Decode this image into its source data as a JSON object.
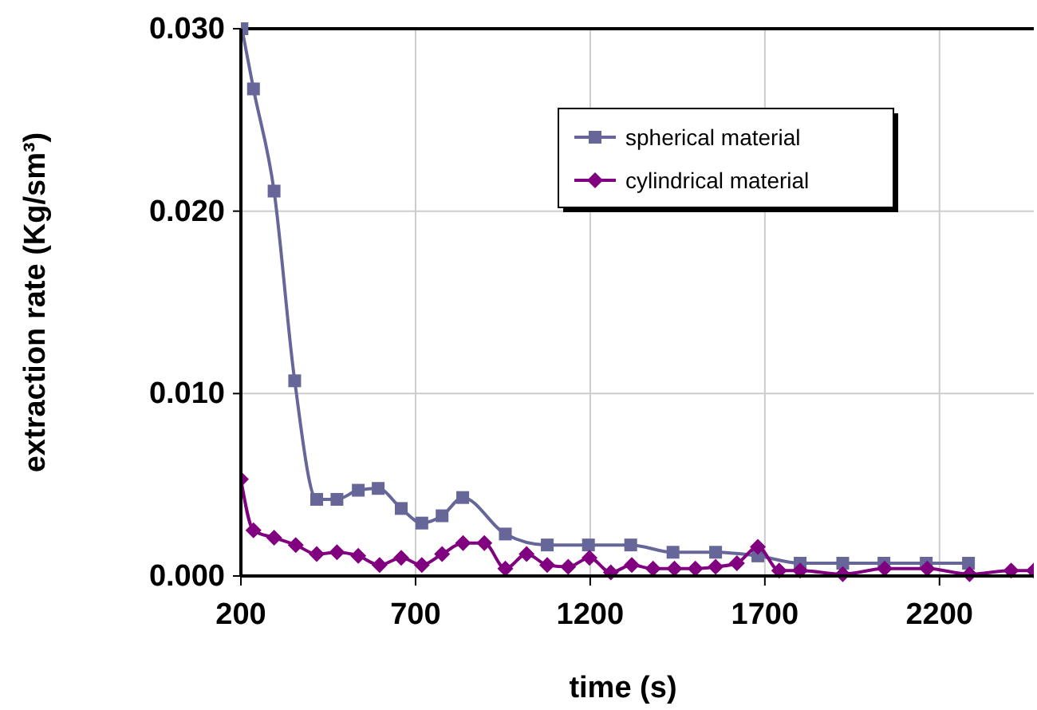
{
  "chart_data": {
    "type": "line",
    "xlabel": "time (s)",
    "ylabel": "extraction rate (Kg/sm³)",
    "xlim": [
      200,
      2470
    ],
    "xticks": [
      200,
      700,
      1200,
      1700,
      2200
    ],
    "ylim": [
      0,
      0.03
    ],
    "yticks": [
      {
        "value": 0,
        "label": "0.000"
      },
      {
        "value": 0.01,
        "label": "0.010"
      },
      {
        "value": 0.02,
        "label": "0.020"
      },
      {
        "value": 0.03,
        "label": "0.030"
      }
    ],
    "grid": true,
    "legend": "top right",
    "line_style": "solid",
    "series": [
      {
        "name": "spherical material",
        "color": "#666699",
        "marker": "square",
        "x": [
          203,
          236,
          295,
          354,
          417,
          475,
          536,
          593,
          659,
          718,
          776,
          835,
          957,
          1077,
          1195,
          1316,
          1437,
          1559,
          1680,
          1801,
          1923,
          2041,
          2162,
          2283
        ],
        "values": [
          0.03,
          0.0267,
          0.0211,
          0.0107,
          0.0042,
          0.0042,
          0.0047,
          0.0048,
          0.0037,
          0.0029,
          0.0033,
          0.0043,
          0.0023,
          0.0017,
          0.0017,
          0.0017,
          0.0013,
          0.0013,
          0.0011,
          0.0007,
          0.0007,
          0.0007,
          0.0007,
          0.0007
        ]
      },
      {
        "name": "cylindrical material",
        "color": "#800080",
        "marker": "diamond",
        "x": [
          200,
          236,
          295,
          357,
          417,
          475,
          536,
          597,
          659,
          718,
          776,
          836,
          897,
          957,
          1018,
          1077,
          1137,
          1198,
          1259,
          1319,
          1380,
          1441,
          1501,
          1559,
          1620,
          1680,
          1741,
          1801,
          1923,
          2043,
          2165,
          2286,
          2405,
          2470
        ],
        "values": [
          0.0053,
          0.0025,
          0.0021,
          0.0017,
          0.0012,
          0.0013,
          0.0011,
          0.0006,
          0.001,
          0.0006,
          0.0012,
          0.0018,
          0.0018,
          0.0004,
          0.0012,
          0.0006,
          0.0005,
          0.001,
          0.0002,
          0.0006,
          0.0004,
          0.0004,
          0.0004,
          0.0005,
          0.0007,
          0.0016,
          0.0003,
          0.0003,
          0.0001,
          0.0004,
          0.0004,
          0.0001,
          0.0003,
          0.0003
        ]
      }
    ]
  }
}
